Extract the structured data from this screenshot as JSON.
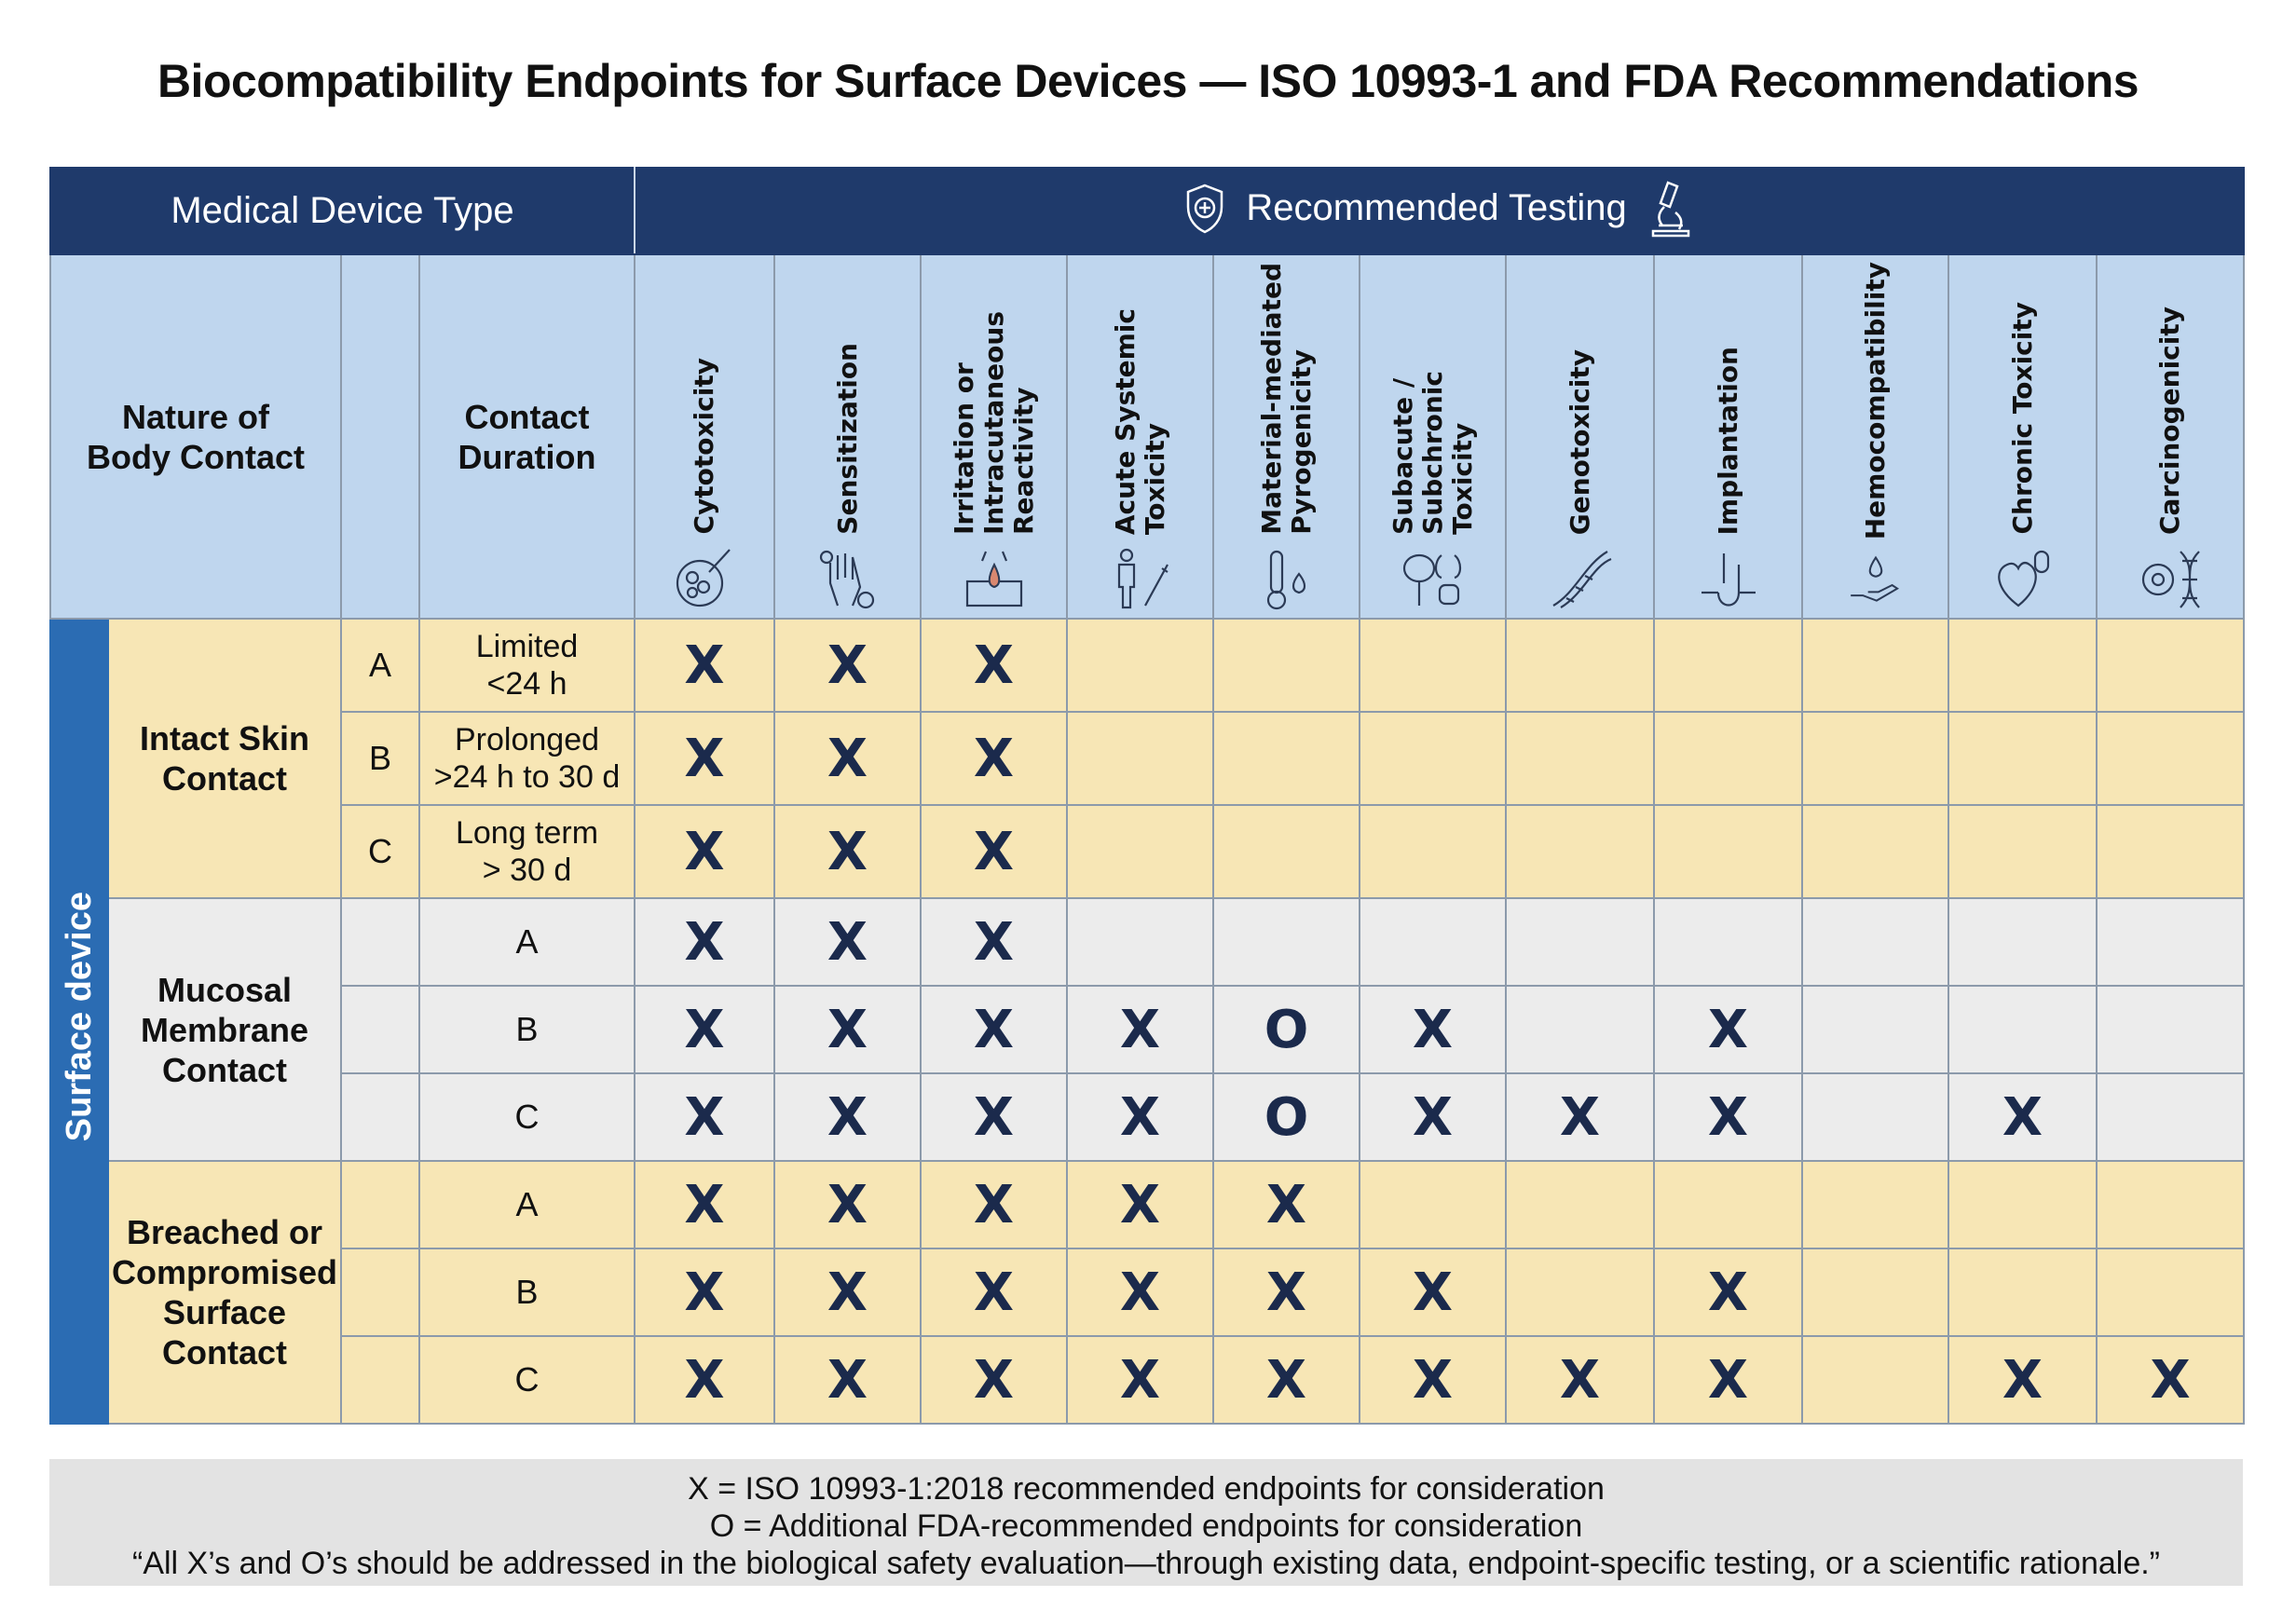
{
  "title": "Biocompatibility Endpoints for Surface Devices — ISO 10993-1 and FDA Recommendations",
  "header": {
    "device_type": "Medical Device Type",
    "recommended_testing": "Recommended Testing",
    "nature": "Nature of\nBody Contact",
    "duration": "Contact\nDuration"
  },
  "tests": [
    {
      "label": "Cytotoxicity",
      "icon": "cell-dish-icon"
    },
    {
      "label": "Sensitization",
      "icon": "glove-allergen-icon"
    },
    {
      "label": "Irritation or\nIntracutaneous\nReactivity",
      "icon": "skin-drop-icon"
    },
    {
      "label": "Acute Systemic\nToxicity",
      "icon": "body-syringe-icon"
    },
    {
      "label": "Material-mediated\nPyrogenicity",
      "icon": "thermometer-flame-icon"
    },
    {
      "label": "Subacute /\nSubchronic\nToxicity",
      "icon": "organs-icon"
    },
    {
      "label": "Genotoxicity",
      "icon": "dna-icon"
    },
    {
      "label": "Implantation",
      "icon": "implant-icon"
    },
    {
      "label": "Hemocompatibility",
      "icon": "blood-hand-icon"
    },
    {
      "label": "Chronic Toxicity",
      "icon": "heart-organs-icon"
    },
    {
      "label": "Carcinogenicity",
      "icon": "cancer-cell-dna-icon"
    }
  ],
  "category": "Surface device",
  "groups": [
    {
      "nature": "Intact Skin\nContact",
      "shade": "y",
      "rows": [
        {
          "letter": "A",
          "duration": "Limited\n<24 h",
          "marks": [
            "X",
            "X",
            "X",
            "",
            "",
            "",
            "",
            "",
            "",
            "",
            ""
          ]
        },
        {
          "letter": "B",
          "duration": "Prolonged\n>24 h to 30 d",
          "marks": [
            "X",
            "X",
            "X",
            "",
            "",
            "",
            "",
            "",
            "",
            "",
            ""
          ]
        },
        {
          "letter": "C",
          "duration": "Long term\n> 30 d",
          "marks": [
            "X",
            "X",
            "X",
            "",
            "",
            "",
            "",
            "",
            "",
            "",
            ""
          ]
        }
      ]
    },
    {
      "nature": "Mucosal\nMembrane\nContact",
      "shade": "g",
      "rows": [
        {
          "letter": "",
          "duration": "A",
          "marks": [
            "X",
            "X",
            "X",
            "",
            "",
            "",
            "",
            "",
            "",
            "",
            ""
          ]
        },
        {
          "letter": "",
          "duration": "B",
          "marks": [
            "X",
            "X",
            "X",
            "X",
            "O",
            "X",
            "",
            "X",
            "",
            "",
            ""
          ]
        },
        {
          "letter": "",
          "duration": "C",
          "marks": [
            "X",
            "X",
            "X",
            "X",
            "O",
            "X",
            "X",
            "X",
            "",
            "X",
            ""
          ]
        }
      ]
    },
    {
      "nature": "Breached or\nCompromised\nSurface\nContact",
      "shade": "y",
      "rows": [
        {
          "letter": "",
          "duration": "A",
          "marks": [
            "X",
            "X",
            "X",
            "X",
            "X",
            "",
            "",
            "",
            "",
            "",
            ""
          ]
        },
        {
          "letter": "",
          "duration": "B",
          "marks": [
            "X",
            "X",
            "X",
            "X",
            "X",
            "X",
            "",
            "X",
            "",
            "",
            ""
          ]
        },
        {
          "letter": "",
          "duration": "C",
          "marks": [
            "X",
            "X",
            "X",
            "X",
            "X",
            "X",
            "X",
            "X",
            "",
            "X",
            "X"
          ]
        }
      ]
    }
  ],
  "legend": {
    "x": "X = ISO 10993-1:2018 recommended endpoints for consideration",
    "o": "O = Additional FDA-recommended endpoints for consideration",
    "note": "“All X’s and O’s should be addressed in the biological safety evaluation—through existing data, endpoint-specific testing, or a scientific rationale.”"
  },
  "colors": {
    "navy": "#1f3a6b",
    "header_blue": "#bfd6ee",
    "yellow": "#f7e6b5",
    "gray": "#ececec",
    "stripe": "#2b6cb3",
    "mark": "#1b2a4c"
  }
}
